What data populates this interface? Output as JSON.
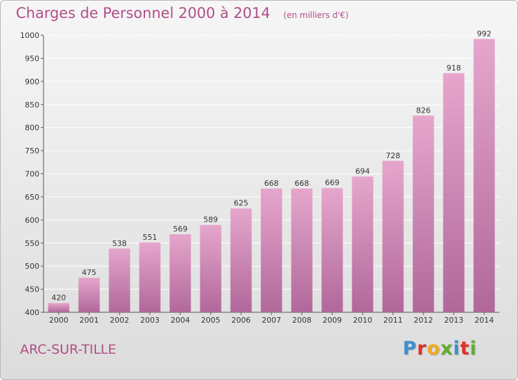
{
  "header": {
    "title": "Charges de Personnel 2000 à 2014",
    "subtitle": "(en milliers d'€)"
  },
  "footer": {
    "place": "ARC-SUR-TILLE",
    "logo_letters": [
      "P",
      "r",
      "o",
      "x",
      "i",
      "t",
      "i"
    ],
    "logo_colors": [
      "#3d8fd0",
      "#e0312a",
      "#f2a91d",
      "#5db030",
      "#3d8fd0",
      "#e0312a",
      "#5db030"
    ]
  },
  "colors": {
    "bar_top": "#e6a6cc",
    "bar_bottom": "#b0689a",
    "grid": "#ffffff",
    "accent": "#b04e86"
  },
  "chart_data": {
    "type": "bar",
    "categories": [
      "2000",
      "2001",
      "2002",
      "2003",
      "2004",
      "2005",
      "2006",
      "2007",
      "2008",
      "2009",
      "2010",
      "2011",
      "2012",
      "2013",
      "2014"
    ],
    "values": [
      420,
      475,
      538,
      551,
      569,
      589,
      625,
      668,
      668,
      669,
      694,
      728,
      826,
      918,
      992
    ],
    "ylim": [
      400,
      1000
    ],
    "yticks": [
      400,
      450,
      500,
      550,
      600,
      650,
      700,
      750,
      800,
      850,
      900,
      950,
      1000
    ],
    "grid": true,
    "legend": "none"
  }
}
